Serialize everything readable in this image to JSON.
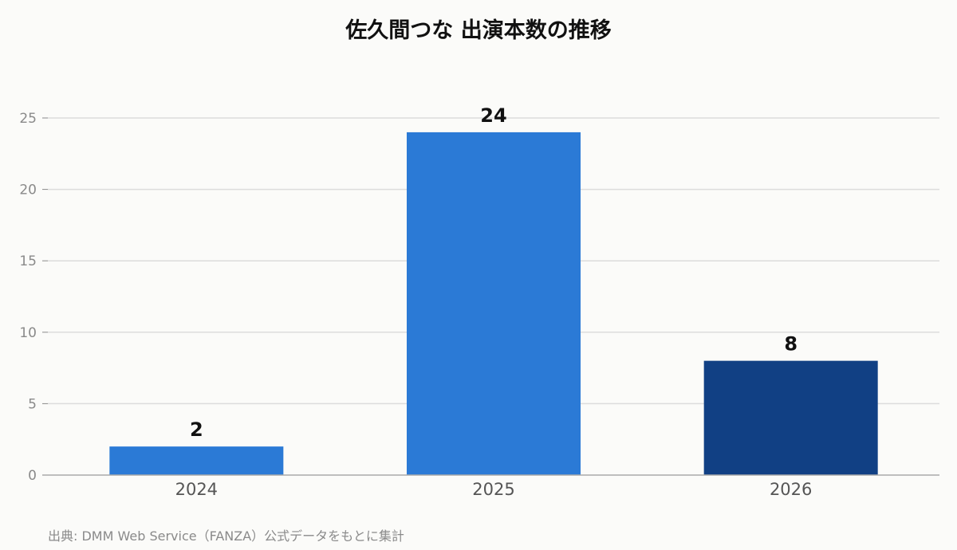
{
  "chart_data": {
    "type": "bar",
    "title": "佐久間つな 出演本数の推移",
    "categories": [
      "2024",
      "2025",
      "2026"
    ],
    "values": [
      2,
      24,
      8
    ],
    "data_labels": [
      "2",
      "24",
      "8"
    ],
    "bar_colors": [
      "#2b7ad6",
      "#2b7ad6",
      "#114084"
    ],
    "xlabel": "",
    "ylabel": "",
    "ylim": [
      0,
      25
    ],
    "yticks": [
      0,
      5,
      10,
      15,
      20,
      25
    ],
    "ytick_labels": [
      "0",
      "5",
      "10",
      "15",
      "20",
      "25"
    ],
    "grid": true
  },
  "source_note": "出典: DMM Web Service（FANZA）公式データをもとに集計",
  "colors": {
    "background": "#fbfbf9",
    "grid": "#dcdcdc",
    "axis": "#aaaaaa"
  }
}
